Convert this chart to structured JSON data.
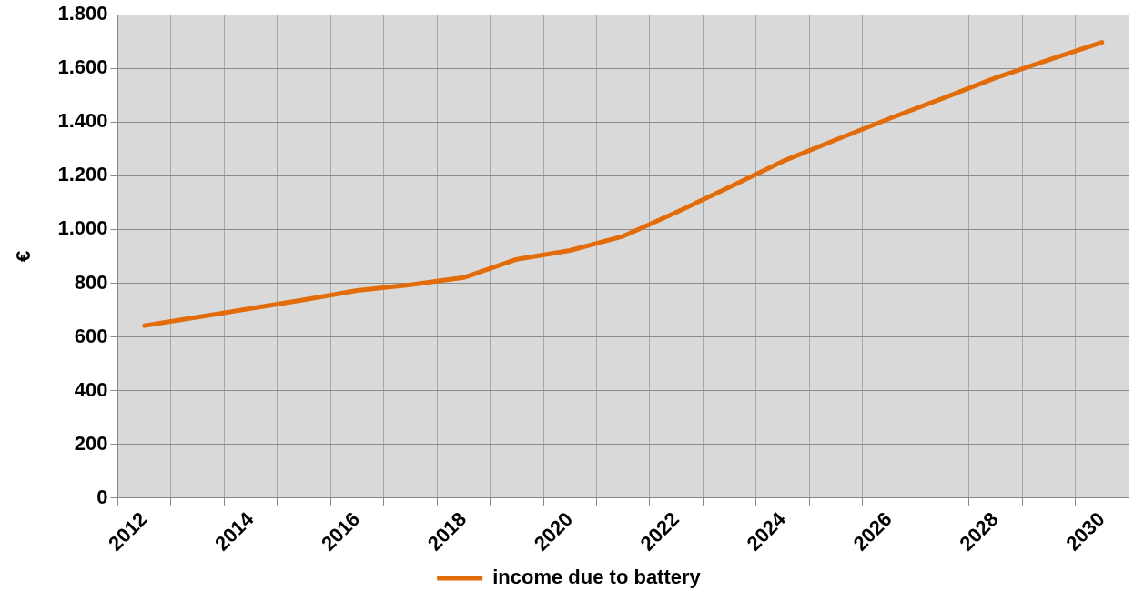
{
  "chart_data": {
    "type": "line",
    "ylabel": "€",
    "categories": [
      "2012",
      null,
      "2014",
      null,
      "2016",
      null,
      "2018",
      null,
      "2020",
      null,
      "2022",
      null,
      "2024",
      null,
      "2026",
      null,
      "2028",
      null,
      "2030"
    ],
    "series": [
      {
        "name": "income due to battery",
        "color": "#e36c0a",
        "values": [
          642,
          674,
          706,
          738,
          773,
          794,
          821,
          889,
          922,
          975,
          1064,
          1158,
          1254,
          1334,
          1413,
          1488,
          1565,
          1632,
          1697
        ]
      }
    ],
    "ylim": [
      0,
      1800
    ],
    "yticks": [
      {
        "value": 0,
        "label": "0"
      },
      {
        "value": 200,
        "label": "200"
      },
      {
        "value": 400,
        "label": "400"
      },
      {
        "value": 600,
        "label": "600"
      },
      {
        "value": 800,
        "label": "800"
      },
      {
        "value": 1000,
        "label": "1.000"
      },
      {
        "value": 1200,
        "label": "1.200"
      },
      {
        "value": 1400,
        "label": "1.400"
      },
      {
        "value": 1600,
        "label": "1.600"
      },
      {
        "value": 1800,
        "label": "1.800"
      }
    ],
    "grid": true,
    "legend": "bottom",
    "marker": "none",
    "line_style": "solid"
  }
}
